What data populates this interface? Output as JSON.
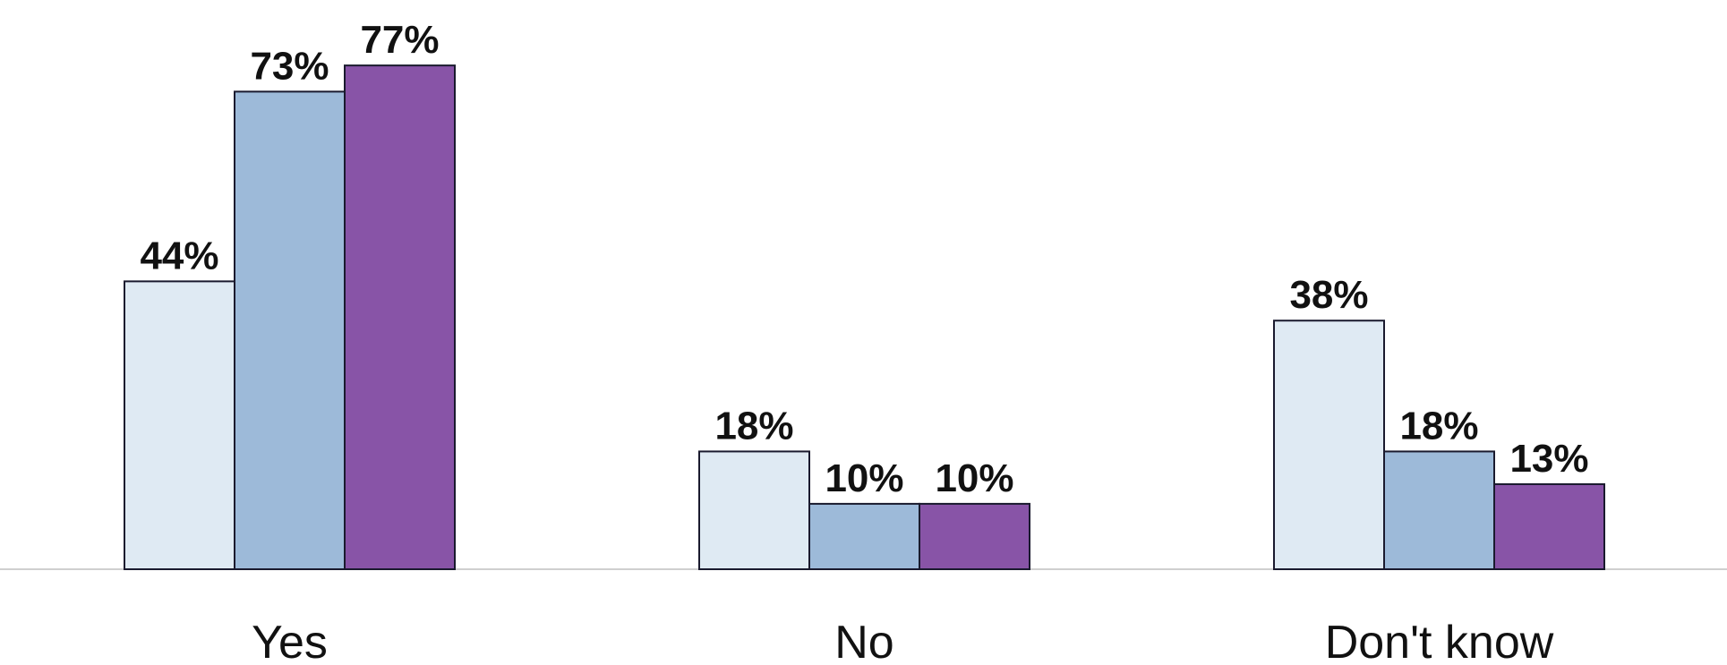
{
  "chart_data": {
    "type": "bar",
    "categories": [
      "Yes",
      "No",
      "Don't know"
    ],
    "series": [
      {
        "values": [
          44,
          18,
          38
        ],
        "color": "#dfeaf3"
      },
      {
        "values": [
          73,
          10,
          18
        ],
        "color": "#9dbad9"
      },
      {
        "values": [
          77,
          10,
          13
        ],
        "color": "#8854a7"
      }
    ],
    "value_suffix": "%",
    "ylim": [
      0,
      80
    ],
    "grid": false,
    "legend": "none",
    "title": "",
    "xlabel": "",
    "ylabel": ""
  }
}
